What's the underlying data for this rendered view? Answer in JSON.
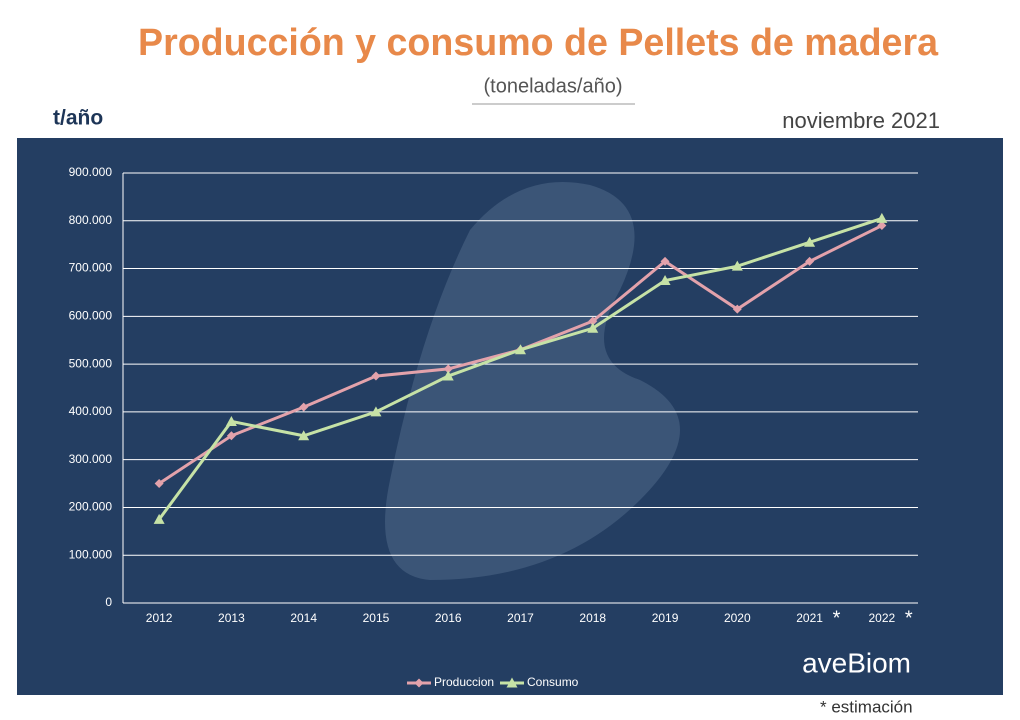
{
  "chart_data": {
    "type": "line",
    "title": "Producción y consumo de Pellets de madera",
    "subtitle": "(toneladas/año)",
    "y_label": "t/año",
    "date_note": "noviembre 2021",
    "estimate_mark": "*",
    "footnote": "* estimación",
    "logo": "aveBiom",
    "categories": [
      "2012",
      "2013",
      "2014",
      "2015",
      "2016",
      "2017",
      "2018",
      "2019",
      "2020",
      "2021",
      "2022"
    ],
    "estimated": [
      false,
      false,
      false,
      false,
      false,
      false,
      false,
      false,
      false,
      true,
      true
    ],
    "series": [
      {
        "name": "Produccion",
        "color": "#e3a2ab",
        "marker": "diamond",
        "values": [
          250000,
          350000,
          410000,
          475000,
          490000,
          530000,
          590000,
          715000,
          615000,
          715000,
          790000
        ]
      },
      {
        "name": "Consumo",
        "color": "#c6e2a6",
        "marker": "triangle",
        "values": [
          175000,
          380000,
          350000,
          400000,
          475000,
          530000,
          575000,
          675000,
          705000,
          755000,
          805000
        ]
      }
    ],
    "ylim": [
      0,
      900000
    ],
    "yticks": [
      0,
      {
        "value": 100000,
        "label": "100.000"
      },
      {
        "value": 200000,
        "label": "200.000"
      },
      {
        "value": 300000,
        "label": "300.000"
      },
      {
        "value": 400000,
        "label": "400.000"
      },
      {
        "value": 500000,
        "label": "500.000"
      },
      {
        "value": 600000,
        "label": "600.000"
      },
      {
        "value": 700000,
        "label": "700.000"
      },
      {
        "value": 800000,
        "label": "800.000"
      },
      {
        "value": 900000,
        "label": "900.000"
      }
    ],
    "grid": true,
    "legend": "bottom"
  }
}
